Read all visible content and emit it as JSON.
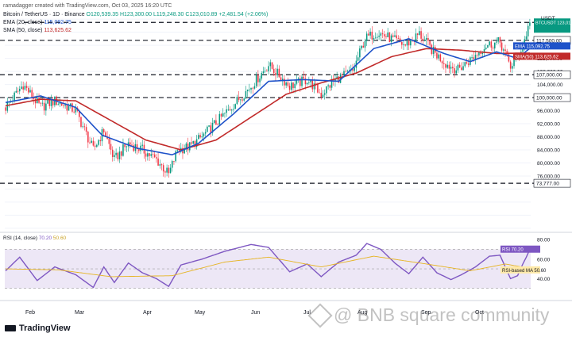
{
  "header": {
    "credit": "ramadagger created with TradingView.com, Oct 03, 2025 16:20 UTC",
    "symbol": "Bitcoin / TetherUS · 1D · Binance",
    "ohlc": "O120,539.35 H123,300.00 L119,248.30 C123,010.89 +2,481.54 (+2.06%)",
    "ema_label": "EMA (20, close)",
    "ema_value": "115,092.75",
    "sma_label": "SMA (50, close)",
    "sma_value": "113,625.62",
    "rsi_label": "RSI (14, close)",
    "rsi_value": "70.20",
    "rsi_ma_value": "50.60",
    "currency": "USDT"
  },
  "branding": {
    "logo_text": "TradingView",
    "watermark_text": "@ BNB square community"
  },
  "colors": {
    "up": "#089981",
    "down": "#f23645",
    "ema": "#1e52c9",
    "sma": "#c12a2a",
    "rsi": "#7e57c2",
    "rsi_ma": "#e6b422",
    "band": "#ede7f6",
    "level": "#131722"
  },
  "chart_data": [
    {
      "type": "candlestick",
      "title": "Bitcoin / TetherUS · 1D · Binance",
      "ylabel": "USDT",
      "ylim": [
        59000,
        125500
      ],
      "x_ticks": [
        "Feb",
        "Mar",
        "Apr",
        "May",
        "Jun",
        "Jul",
        "Aug",
        "Sep",
        "Oct"
      ],
      "y_ticks": [
        60000,
        64000,
        68000,
        72000,
        76000,
        80000,
        84000,
        88000,
        92000,
        96000,
        100000,
        104000,
        108000,
        112000,
        116000,
        120000,
        124000
      ],
      "y_tick_labels": [
        "",
        "",
        "",
        "",
        "76,000.00",
        "80,000.00",
        "84,000.00",
        "88,000.00",
        "92,000.00",
        "96,000.00",
        "",
        "104,000.00",
        "108,000.00",
        "112,000.00",
        "",
        "",
        ""
      ],
      "horizontal_levels": [
        {
          "value": 123010.89,
          "label": "BTCUSDT 123,010.89 +2.06% 07:39:52",
          "style": "dashed"
        },
        {
          "value": 117500,
          "label": "117,500.00",
          "style": "dashed"
        },
        {
          "value": 107000,
          "label": "107,000.00",
          "style": "dashed"
        },
        {
          "value": 100000,
          "label": "100,000.00",
          "style": "dashed"
        },
        {
          "value": 73777,
          "label": "73,777.00",
          "style": "dashed"
        }
      ],
      "series_tags": [
        {
          "name": "EMA",
          "value": 115092.75,
          "label": "EMA 115,092.75"
        },
        {
          "name": "SMA(50)",
          "value": 113625.62,
          "label": "SMA(50) 113,625.62"
        }
      ],
      "anchors": [
        {
          "t": 0,
          "v": 97000
        },
        {
          "t": 10,
          "v": 104000
        },
        {
          "t": 20,
          "v": 97000
        },
        {
          "t": 28,
          "v": 99000
        },
        {
          "t": 40,
          "v": 96000
        },
        {
          "t": 50,
          "v": 84000
        },
        {
          "t": 56,
          "v": 90000
        },
        {
          "t": 62,
          "v": 81000
        },
        {
          "t": 70,
          "v": 86000
        },
        {
          "t": 78,
          "v": 84000
        },
        {
          "t": 86,
          "v": 81000
        },
        {
          "t": 93,
          "v": 76500
        },
        {
          "t": 98,
          "v": 84000
        },
        {
          "t": 105,
          "v": 85000
        },
        {
          "t": 112,
          "v": 88000
        },
        {
          "t": 125,
          "v": 95000
        },
        {
          "t": 140,
          "v": 103500
        },
        {
          "t": 150,
          "v": 110000
        },
        {
          "t": 162,
          "v": 103500
        },
        {
          "t": 172,
          "v": 105500
        },
        {
          "t": 180,
          "v": 101000
        },
        {
          "t": 188,
          "v": 105500
        },
        {
          "t": 198,
          "v": 108000
        },
        {
          "t": 205,
          "v": 118000
        },
        {
          "t": 212,
          "v": 120000
        },
        {
          "t": 220,
          "v": 118000
        },
        {
          "t": 228,
          "v": 116000
        },
        {
          "t": 236,
          "v": 119500
        },
        {
          "t": 244,
          "v": 114000
        },
        {
          "t": 252,
          "v": 110000
        },
        {
          "t": 258,
          "v": 108500
        },
        {
          "t": 266,
          "v": 112000
        },
        {
          "t": 274,
          "v": 116000
        },
        {
          "t": 282,
          "v": 117000
        },
        {
          "t": 288,
          "v": 109500
        },
        {
          "t": 292,
          "v": 112500
        },
        {
          "t": 295,
          "v": 116000
        },
        {
          "t": 297,
          "v": 119500
        },
        {
          "t": 299,
          "v": 123010.89
        }
      ],
      "ema_20": [
        {
          "t": 0,
          "v": 98500
        },
        {
          "t": 20,
          "v": 100500
        },
        {
          "t": 40,
          "v": 97000
        },
        {
          "t": 55,
          "v": 88500
        },
        {
          "t": 75,
          "v": 84500
        },
        {
          "t": 95,
          "v": 82500
        },
        {
          "t": 110,
          "v": 86000
        },
        {
          "t": 130,
          "v": 95000
        },
        {
          "t": 150,
          "v": 105000
        },
        {
          "t": 170,
          "v": 105500
        },
        {
          "t": 190,
          "v": 105000
        },
        {
          "t": 210,
          "v": 115000
        },
        {
          "t": 230,
          "v": 118000
        },
        {
          "t": 250,
          "v": 113500
        },
        {
          "t": 265,
          "v": 111000
        },
        {
          "t": 280,
          "v": 114000
        },
        {
          "t": 292,
          "v": 112000
        },
        {
          "t": 299,
          "v": 115092.75
        }
      ],
      "sma_50": [
        {
          "t": 0,
          "v": 97500
        },
        {
          "t": 20,
          "v": 99500
        },
        {
          "t": 40,
          "v": 99000
        },
        {
          "t": 60,
          "v": 93000
        },
        {
          "t": 80,
          "v": 87000
        },
        {
          "t": 100,
          "v": 84000
        },
        {
          "t": 120,
          "v": 87000
        },
        {
          "t": 140,
          "v": 94000
        },
        {
          "t": 160,
          "v": 101000
        },
        {
          "t": 180,
          "v": 104500
        },
        {
          "t": 200,
          "v": 107500
        },
        {
          "t": 220,
          "v": 112500
        },
        {
          "t": 240,
          "v": 115000
        },
        {
          "t": 260,
          "v": 114500
        },
        {
          "t": 280,
          "v": 113500
        },
        {
          "t": 299,
          "v": 113625.62
        }
      ]
    },
    {
      "type": "line",
      "title": "RSI (14, close)",
      "ylim": [
        20,
        85
      ],
      "y_ticks": [
        40,
        60,
        80
      ],
      "y_tick_labels": [
        "40.00",
        "60.00",
        "80.00"
      ],
      "band": [
        30,
        70
      ],
      "series": [
        {
          "name": "RSI",
          "value_label": "70.20",
          "tag": "RSI 70.20",
          "anchors": [
            {
              "t": 0,
              "v": 48
            },
            {
              "t": 8,
              "v": 62
            },
            {
              "t": 18,
              "v": 38
            },
            {
              "t": 28,
              "v": 52
            },
            {
              "t": 40,
              "v": 44
            },
            {
              "t": 50,
              "v": 31
            },
            {
              "t": 56,
              "v": 52
            },
            {
              "t": 62,
              "v": 36
            },
            {
              "t": 70,
              "v": 56
            },
            {
              "t": 78,
              "v": 46
            },
            {
              "t": 86,
              "v": 40
            },
            {
              "t": 93,
              "v": 32
            },
            {
              "t": 100,
              "v": 54
            },
            {
              "t": 112,
              "v": 60
            },
            {
              "t": 125,
              "v": 68
            },
            {
              "t": 140,
              "v": 75
            },
            {
              "t": 150,
              "v": 72
            },
            {
              "t": 162,
              "v": 47
            },
            {
              "t": 172,
              "v": 55
            },
            {
              "t": 180,
              "v": 42
            },
            {
              "t": 190,
              "v": 57
            },
            {
              "t": 200,
              "v": 64
            },
            {
              "t": 206,
              "v": 76
            },
            {
              "t": 214,
              "v": 70
            },
            {
              "t": 222,
              "v": 56
            },
            {
              "t": 230,
              "v": 45
            },
            {
              "t": 238,
              "v": 62
            },
            {
              "t": 246,
              "v": 46
            },
            {
              "t": 254,
              "v": 39
            },
            {
              "t": 260,
              "v": 44
            },
            {
              "t": 268,
              "v": 52
            },
            {
              "t": 276,
              "v": 63
            },
            {
              "t": 282,
              "v": 64
            },
            {
              "t": 288,
              "v": 40
            },
            {
              "t": 292,
              "v": 43
            },
            {
              "t": 295,
              "v": 55
            },
            {
              "t": 297,
              "v": 62
            },
            {
              "t": 299,
              "v": 70.2
            }
          ]
        },
        {
          "name": "RSI-based MA",
          "value_label": "50.60",
          "tag": "RSI-based MA 50.60",
          "anchors": [
            {
              "t": 0,
              "v": 50
            },
            {
              "t": 30,
              "v": 49
            },
            {
              "t": 60,
              "v": 42
            },
            {
              "t": 95,
              "v": 43
            },
            {
              "t": 125,
              "v": 57
            },
            {
              "t": 150,
              "v": 62
            },
            {
              "t": 180,
              "v": 52
            },
            {
              "t": 210,
              "v": 63
            },
            {
              "t": 240,
              "v": 55
            },
            {
              "t": 265,
              "v": 48
            },
            {
              "t": 285,
              "v": 55
            },
            {
              "t": 299,
              "v": 50.6
            }
          ]
        }
      ]
    }
  ]
}
